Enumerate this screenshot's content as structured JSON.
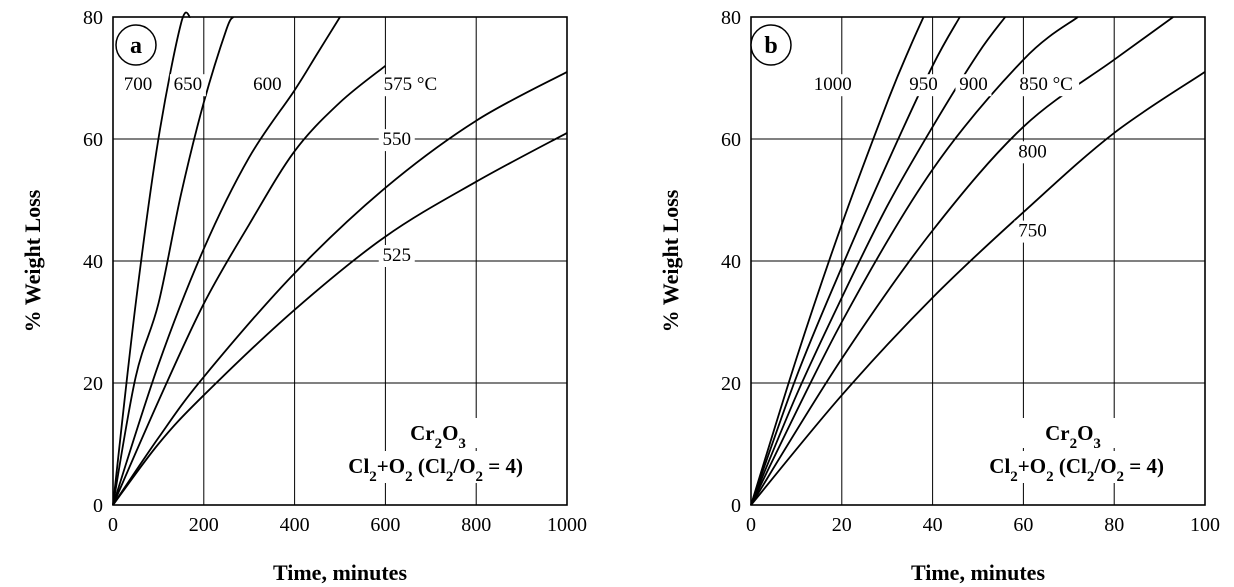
{
  "chart_data": [
    {
      "type": "line",
      "panel": "a",
      "xlabel": "Time, minutes",
      "ylabel": "% Weight Loss",
      "xlim": [
        0,
        1000
      ],
      "ylim": [
        0,
        80
      ],
      "xticks": [
        "0",
        "200",
        "400",
        "600",
        "800",
        "1000"
      ],
      "yticks": [
        "0",
        "20",
        "40",
        "60",
        "80"
      ],
      "grid": true,
      "annotation": {
        "compound": {
          "base": "Cr",
          "s1": "2",
          "mid": "O",
          "s2": "3"
        },
        "atmosphere": {
          "t1": "Cl",
          "s1": "2",
          "t2": "+O",
          "s2": "2",
          "t3": " (Cl",
          "s3": "2",
          "t4": "/O",
          "s4": "2",
          "t5": " = 4)"
        }
      },
      "series": [
        {
          "name": "700",
          "x": [
            0,
            50,
            100,
            150,
            170
          ],
          "y": [
            0,
            33,
            60,
            79,
            80
          ]
        },
        {
          "name": "650",
          "x": [
            0,
            50,
            100,
            150,
            200,
            250,
            265
          ],
          "y": [
            0,
            21,
            33,
            51,
            66,
            78,
            80
          ]
        },
        {
          "name": "600",
          "x": [
            0,
            100,
            200,
            300,
            400,
            450,
            500
          ],
          "y": [
            0,
            23,
            42,
            57,
            68,
            74,
            80
          ]
        },
        {
          "name": "575 °C",
          "x": [
            0,
            100,
            200,
            300,
            400,
            500,
            600
          ],
          "y": [
            0,
            17,
            33,
            46,
            58,
            66,
            72
          ]
        },
        {
          "name": "550",
          "x": [
            0,
            100,
            200,
            400,
            600,
            800,
            1000
          ],
          "y": [
            0,
            11,
            21,
            38,
            52,
            63,
            71
          ]
        },
        {
          "name": "525",
          "x": [
            0,
            100,
            200,
            400,
            600,
            800,
            1000
          ],
          "y": [
            0,
            10,
            18,
            32,
            44,
            53,
            61
          ]
        }
      ],
      "label_values": [
        {
          "text": "700",
          "x": 55,
          "y": 68
        },
        {
          "text": "650",
          "x": 165,
          "y": 68
        },
        {
          "text": "600",
          "x": 340,
          "y": 68
        },
        {
          "text": "575 °C",
          "x": 655,
          "y": 68
        },
        {
          "text": "550",
          "x": 625,
          "y": 59
        },
        {
          "text": "525",
          "x": 625,
          "y": 40
        }
      ]
    },
    {
      "type": "line",
      "panel": "b",
      "xlabel": "Time, minutes",
      "ylabel": "% Weight Loss",
      "xlim": [
        0,
        100
      ],
      "ylim": [
        0,
        80
      ],
      "xticks": [
        "0",
        "20",
        "40",
        "60",
        "80",
        "100"
      ],
      "yticks": [
        "0",
        "20",
        "40",
        "60",
        "80"
      ],
      "grid": true,
      "annotation": {
        "compound": {
          "base": "Cr",
          "s1": "2",
          "mid": "O",
          "s2": "3"
        },
        "atmosphere": {
          "t1": "Cl",
          "s1": "2",
          "t2": "+O",
          "s2": "2",
          "t3": " (Cl",
          "s3": "2",
          "t4": "/O",
          "s4": "2",
          "t5": " = 4)"
        }
      },
      "series": [
        {
          "name": "1000",
          "x": [
            0,
            10,
            20,
            30,
            35,
            38
          ],
          "y": [
            0,
            24,
            46,
            66,
            75,
            80
          ]
        },
        {
          "name": "950",
          "x": [
            0,
            10,
            20,
            30,
            40,
            46
          ],
          "y": [
            0,
            21,
            39,
            56,
            72,
            80
          ]
        },
        {
          "name": "900",
          "x": [
            0,
            10,
            20,
            30,
            40,
            50,
            56
          ],
          "y": [
            0,
            18,
            34,
            49,
            62,
            74,
            80
          ]
        },
        {
          "name": "850 °C",
          "x": [
            0,
            20,
            40,
            60,
            72
          ],
          "y": [
            0,
            30,
            55,
            73,
            80
          ]
        },
        {
          "name": "800",
          "x": [
            0,
            20,
            40,
            60,
            80,
            93
          ],
          "y": [
            0,
            24,
            45,
            62,
            73,
            80
          ]
        },
        {
          "name": "750",
          "x": [
            0,
            20,
            40,
            60,
            80,
            100
          ],
          "y": [
            0,
            18,
            34,
            48,
            61,
            71
          ]
        }
      ],
      "label_values": [
        {
          "text": "1000",
          "x": 18,
          "y": 68
        },
        {
          "text": "950",
          "x": 38,
          "y": 68
        },
        {
          "text": "900",
          "x": 49,
          "y": 68
        },
        {
          "text": "850 °C",
          "x": 65,
          "y": 68
        },
        {
          "text": "800",
          "x": 62,
          "y": 57
        },
        {
          "text": "750",
          "x": 62,
          "y": 44
        }
      ]
    }
  ]
}
